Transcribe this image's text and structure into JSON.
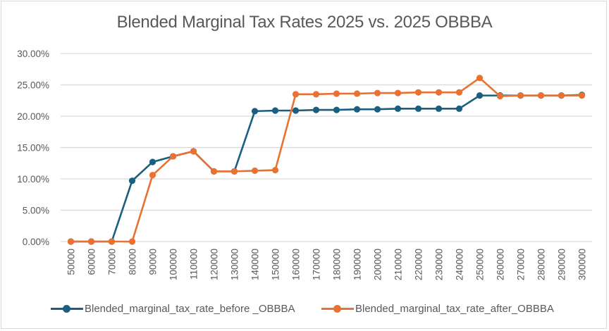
{
  "chart_data": {
    "type": "line",
    "title": "Blended Marginal Tax Rates 2025 vs. 2025 OBBBA",
    "xlabel": "",
    "ylabel": "",
    "ylim": [
      0,
      0.3
    ],
    "y_ticks": [
      "0.00%",
      "5.00%",
      "10.00%",
      "15.00%",
      "20.00%",
      "25.00%",
      "30.00%"
    ],
    "y_tick_values": [
      0,
      0.05,
      0.1,
      0.15,
      0.2,
      0.25,
      0.3
    ],
    "grid": true,
    "legend_position": "bottom",
    "categories": [
      "50000",
      "60000",
      "70000",
      "80000",
      "90000",
      "100000",
      "110000",
      "120000",
      "130000",
      "140000",
      "150000",
      "160000",
      "170000",
      "180000",
      "190000",
      "200000",
      "210000",
      "220000",
      "230000",
      "240000",
      "250000",
      "260000",
      "270000",
      "280000",
      "290000",
      "300000"
    ],
    "series": [
      {
        "name": "Blended_marginal_tax_rate_before _OBBBA",
        "color": "#1a5f7f",
        "values": [
          0,
          0,
          0,
          0.097,
          0.127,
          0.136,
          0.144,
          0.112,
          0.112,
          0.208,
          0.209,
          0.209,
          0.21,
          0.21,
          0.211,
          0.211,
          0.212,
          0.212,
          0.212,
          0.212,
          0.233,
          0.233,
          0.233,
          0.233,
          0.233,
          0.234
        ]
      },
      {
        "name": "Blended_marginal_tax_rate_after_OBBBA",
        "color": "#e97132",
        "values": [
          0,
          0,
          0,
          0,
          0.106,
          0.136,
          0.144,
          0.112,
          0.112,
          0.113,
          0.114,
          0.235,
          0.235,
          0.236,
          0.236,
          0.237,
          0.237,
          0.238,
          0.238,
          0.238,
          0.261,
          0.232,
          0.233,
          0.233,
          0.233,
          0.233
        ]
      }
    ]
  }
}
